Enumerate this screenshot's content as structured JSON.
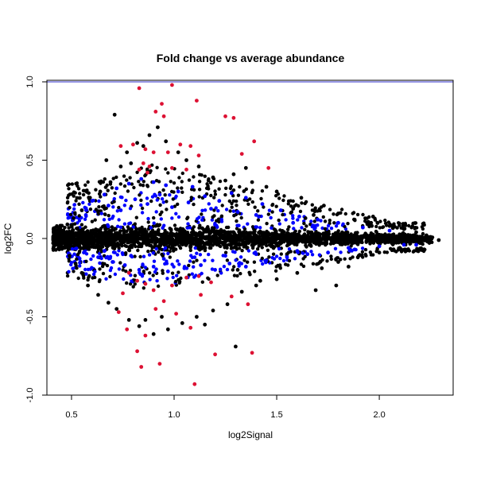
{
  "chart_data": {
    "type": "scatter",
    "title": "Fold change vs average abundance",
    "xlabel": "log2Signal",
    "ylabel": "log2FC",
    "xlim": [
      0.38,
      2.36
    ],
    "ylim": [
      -1.0,
      1.01
    ],
    "x_ticks": [
      0.5,
      1.0,
      1.5,
      2.0
    ],
    "x_tick_labels": [
      "0.5",
      "1.0",
      "1.5",
      "2.0"
    ],
    "y_ticks": [
      -1.0,
      -0.5,
      0.0,
      0.5,
      1.0
    ],
    "y_tick_labels": [
      "-1.0",
      "-0.5",
      "0.0",
      "0.5",
      "1.0"
    ],
    "reference_lines": [
      {
        "y": 1.0,
        "color": "#3333cc"
      },
      {
        "y": -1.0,
        "color": "#3333cc"
      }
    ],
    "grid": false,
    "legend": "none",
    "colors": {
      "background_points": "#000000",
      "moderate_points": "#0000ff",
      "significant_points": "#dd1133",
      "reference": "#3333cc"
    },
    "series": [
      {
        "color": "#000000",
        "points": [
          [
            0.71,
            0.79
          ],
          [
            0.82,
            0.61
          ],
          [
            0.88,
            0.66
          ],
          [
            0.92,
            0.71
          ],
          [
            0.77,
            0.55
          ],
          [
            0.67,
            0.5
          ],
          [
            0.74,
            0.46
          ],
          [
            0.85,
            0.59
          ],
          [
            0.96,
            0.62
          ],
          [
            1.06,
            0.5
          ],
          [
            1.12,
            0.46
          ],
          [
            1.19,
            0.39
          ],
          [
            1.29,
            0.41
          ],
          [
            1.38,
            0.36
          ],
          [
            1.5,
            0.3
          ],
          [
            1.62,
            0.26
          ],
          [
            1.73,
            0.21
          ],
          [
            1.8,
            0.16
          ],
          [
            1.68,
            0.15
          ],
          [
            1.58,
            0.19
          ],
          [
            1.88,
            0.12
          ],
          [
            1.96,
            0.1
          ],
          [
            2.05,
            0.08
          ],
          [
            2.12,
            0.06
          ],
          [
            2.18,
            0.04
          ],
          [
            2.23,
            0.02
          ],
          [
            2.29,
            -0.01
          ],
          [
            2.25,
            0.01
          ],
          [
            2.2,
            -0.03
          ],
          [
            2.1,
            -0.06
          ],
          [
            2.0,
            -0.09
          ],
          [
            1.9,
            -0.11
          ],
          [
            1.8,
            -0.15
          ],
          [
            1.72,
            -0.19
          ],
          [
            1.6,
            -0.22
          ],
          [
            1.5,
            -0.26
          ],
          [
            1.4,
            -0.3
          ],
          [
            1.33,
            -0.34
          ],
          [
            1.3,
            -0.69
          ],
          [
            1.26,
            -0.42
          ],
          [
            1.19,
            -0.46
          ],
          [
            1.11,
            -0.5
          ],
          [
            1.04,
            -0.54
          ],
          [
            0.97,
            -0.58
          ],
          [
            0.9,
            -0.61
          ],
          [
            0.83,
            -0.56
          ],
          [
            0.78,
            -0.52
          ],
          [
            0.72,
            -0.45
          ],
          [
            0.68,
            -0.41
          ],
          [
            0.63,
            -0.36
          ],
          [
            0.58,
            -0.3
          ],
          [
            0.55,
            -0.22
          ],
          [
            0.52,
            -0.16
          ],
          [
            0.49,
            -0.11
          ],
          [
            0.46,
            -0.06
          ],
          [
            0.43,
            -0.02
          ],
          [
            0.42,
            0.01
          ],
          [
            0.45,
            0.05
          ],
          [
            0.48,
            0.09
          ],
          [
            0.51,
            0.13
          ],
          [
            0.55,
            0.18
          ],
          [
            0.59,
            0.24
          ],
          [
            0.64,
            0.3
          ],
          [
            0.69,
            0.36
          ],
          [
            1.79,
            -0.3
          ],
          [
            1.69,
            -0.33
          ],
          [
            1.45,
            0.33
          ],
          [
            1.35,
            0.45
          ],
          [
            1.42,
            -0.27
          ],
          [
            1.25,
            0.37
          ],
          [
            0.94,
            -0.5
          ],
          [
            1.02,
            0.55
          ],
          [
            1.15,
            -0.55
          ],
          [
            0.86,
            -0.52
          ],
          [
            0.79,
            0.48
          ],
          [
            1.97,
            0.14
          ],
          [
            1.85,
            -0.18
          ],
          [
            1.64,
            0.13
          ],
          [
            1.55,
            -0.1
          ],
          [
            1.31,
            -0.2
          ]
        ]
      },
      {
        "color": "#0000ff",
        "points": [
          [
            0.6,
            0.24
          ],
          [
            0.66,
            0.28
          ],
          [
            0.72,
            0.32
          ],
          [
            0.78,
            0.35
          ],
          [
            0.84,
            0.38
          ],
          [
            0.9,
            0.36
          ],
          [
            0.96,
            0.34
          ],
          [
            1.02,
            0.3
          ],
          [
            1.09,
            0.33
          ],
          [
            1.15,
            0.27
          ],
          [
            1.22,
            0.24
          ],
          [
            1.28,
            0.29
          ],
          [
            1.35,
            0.26
          ],
          [
            1.43,
            0.22
          ],
          [
            1.52,
            0.18
          ],
          [
            1.61,
            0.14
          ],
          [
            1.7,
            0.12
          ],
          [
            1.8,
            0.1
          ],
          [
            1.92,
            0.07
          ],
          [
            2.05,
            0.05
          ],
          [
            0.63,
            -0.12
          ],
          [
            0.7,
            -0.15
          ],
          [
            0.76,
            -0.17
          ],
          [
            0.83,
            -0.2
          ],
          [
            0.9,
            -0.18
          ],
          [
            0.97,
            -0.21
          ],
          [
            1.05,
            -0.19
          ],
          [
            1.13,
            -0.17
          ],
          [
            1.2,
            -0.2
          ],
          [
            1.27,
            -0.16
          ],
          [
            1.35,
            -0.18
          ],
          [
            1.45,
            -0.14
          ],
          [
            1.55,
            -0.12
          ],
          [
            1.65,
            -0.1
          ],
          [
            1.75,
            -0.09
          ],
          [
            1.88,
            -0.07
          ],
          [
            2.0,
            -0.05
          ],
          [
            2.12,
            -0.04
          ],
          [
            0.57,
            0.15
          ],
          [
            0.68,
            0.21
          ],
          [
            0.74,
            0.18
          ],
          [
            0.81,
            0.25
          ],
          [
            0.87,
            0.22
          ],
          [
            0.93,
            0.28
          ],
          [
            0.99,
            0.2
          ],
          [
            1.07,
            0.23
          ],
          [
            1.18,
            0.19
          ],
          [
            1.31,
            0.17
          ],
          [
            1.4,
            0.15
          ],
          [
            1.58,
            0.1
          ],
          [
            0.56,
            -0.09
          ],
          [
            0.66,
            -0.08
          ],
          [
            0.79,
            -0.11
          ],
          [
            0.95,
            -0.13
          ],
          [
            1.1,
            -0.12
          ],
          [
            1.25,
            -0.11
          ],
          [
            1.4,
            -0.1
          ],
          [
            1.6,
            -0.08
          ],
          [
            1.85,
            -0.06
          ],
          [
            2.18,
            -0.04
          ]
        ]
      },
      {
        "color": "#dd1133",
        "points": [
          [
            0.83,
            0.96
          ],
          [
            0.99,
            0.98
          ],
          [
            1.11,
            0.88
          ],
          [
            0.94,
            0.86
          ],
          [
            0.91,
            0.81
          ],
          [
            0.95,
            0.78
          ],
          [
            1.25,
            0.78
          ],
          [
            1.29,
            0.77
          ],
          [
            1.39,
            0.62
          ],
          [
            0.74,
            0.59
          ],
          [
            0.8,
            0.6
          ],
          [
            0.86,
            0.57
          ],
          [
            0.9,
            0.55
          ],
          [
            0.97,
            0.55
          ],
          [
            1.03,
            0.6
          ],
          [
            1.08,
            0.59
          ],
          [
            1.12,
            0.53
          ],
          [
            0.85,
            0.48
          ],
          [
            0.88,
            0.46
          ],
          [
            0.83,
            0.44
          ],
          [
            0.87,
            0.42
          ],
          [
            0.99,
            0.45
          ],
          [
            1.06,
            0.44
          ],
          [
            1.46,
            0.45
          ],
          [
            1.33,
            0.54
          ],
          [
            0.78,
            -0.22
          ],
          [
            0.82,
            -0.27
          ],
          [
            0.86,
            -0.29
          ],
          [
            0.9,
            -0.33
          ],
          [
            0.99,
            -0.3
          ],
          [
            1.06,
            -0.25
          ],
          [
            1.12,
            -0.24
          ],
          [
            1.18,
            -0.28
          ],
          [
            1.28,
            -0.37
          ],
          [
            1.36,
            -0.42
          ],
          [
            0.75,
            -0.35
          ],
          [
            0.73,
            -0.47
          ],
          [
            0.77,
            -0.58
          ],
          [
            0.82,
            -0.72
          ],
          [
            0.84,
            -0.82
          ],
          [
            0.86,
            -0.62
          ],
          [
            0.93,
            -0.8
          ],
          [
            0.91,
            -0.45
          ],
          [
            1.01,
            -0.48
          ],
          [
            1.08,
            -0.57
          ],
          [
            1.1,
            -0.93
          ],
          [
            1.2,
            -0.74
          ],
          [
            1.38,
            -0.73
          ],
          [
            0.95,
            -0.4
          ],
          [
            1.13,
            -0.36
          ]
        ]
      }
    ]
  }
}
